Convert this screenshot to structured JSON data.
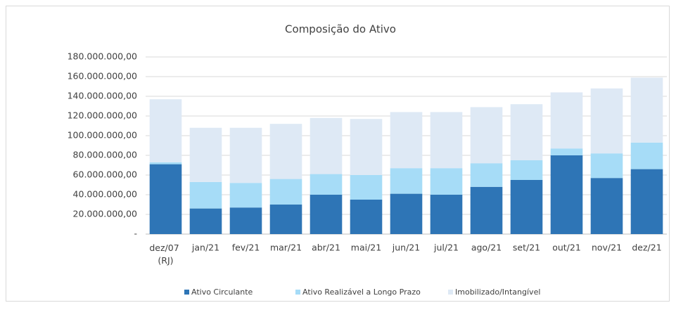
{
  "chart_data": {
    "type": "stacked_bar",
    "title": "Composição do Ativo",
    "categories": [
      "dez/07 (RJ)",
      "jan/21",
      "fev/21",
      "mar/21",
      "abr/21",
      "mai/21",
      "jun/21",
      "jul/21",
      "ago/21",
      "set/21",
      "out/21",
      "nov/21",
      "dez/21"
    ],
    "series": [
      {
        "name": "Ativo Circulante",
        "color": "#2e75b6",
        "values": [
          71000000,
          26000000,
          27000000,
          30000000,
          40000000,
          35000000,
          41000000,
          40000000,
          48000000,
          55000000,
          80000000,
          57000000,
          66000000
        ]
      },
      {
        "name": "Ativo Realizável a Longo Prazo",
        "color": "#a6dcf7",
        "values": [
          2000000,
          27000000,
          25000000,
          26000000,
          21000000,
          25000000,
          26000000,
          27000000,
          24000000,
          20000000,
          7000000,
          25000000,
          27000000
        ]
      },
      {
        "name": "Imobilizado/Intangível",
        "color": "#dee9f5",
        "values": [
          64000000,
          55000000,
          56000000,
          56000000,
          57000000,
          57000000,
          57000000,
          57000000,
          57000000,
          57000000,
          57000000,
          66000000,
          66000000
        ]
      }
    ],
    "ylim": [
      0,
      180000000
    ],
    "yticks": [
      {
        "value": 0,
        "label": "-"
      },
      {
        "value": 20000000,
        "label": "20.000.000,00"
      },
      {
        "value": 40000000,
        "label": "40.000.000,00"
      },
      {
        "value": 60000000,
        "label": "60.000.000,00"
      },
      {
        "value": 80000000,
        "label": "80.000.000,00"
      },
      {
        "value": 100000000,
        "label": "100.000.000,00"
      },
      {
        "value": 120000000,
        "label": "120.000.000,00"
      },
      {
        "value": 140000000,
        "label": "140.000.000,00"
      },
      {
        "value": 160000000,
        "label": "160.000.000,00"
      },
      {
        "value": 180000000,
        "label": "180.000.000,00"
      }
    ],
    "grid": true,
    "legend": "bottom"
  }
}
